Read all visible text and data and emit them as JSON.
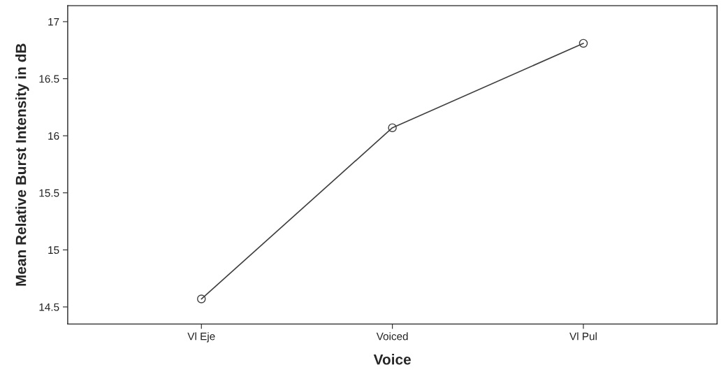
{
  "chart_data": {
    "type": "line",
    "xlabel": "Voice",
    "ylabel": "Mean Relative Burst Intensity in dB",
    "categories": [
      "Vl Eje",
      "Voiced",
      "Vl Pul"
    ],
    "series": [
      {
        "color": "#404040",
        "values": [
          14.57,
          16.07,
          16.81
        ]
      }
    ],
    "marker": "circle",
    "line_style": "solid",
    "grid": false,
    "legend": false,
    "ylim": [
      14.35,
      17.14
    ],
    "yticks": [
      14.5,
      15,
      15.5,
      16,
      16.5,
      17
    ]
  }
}
